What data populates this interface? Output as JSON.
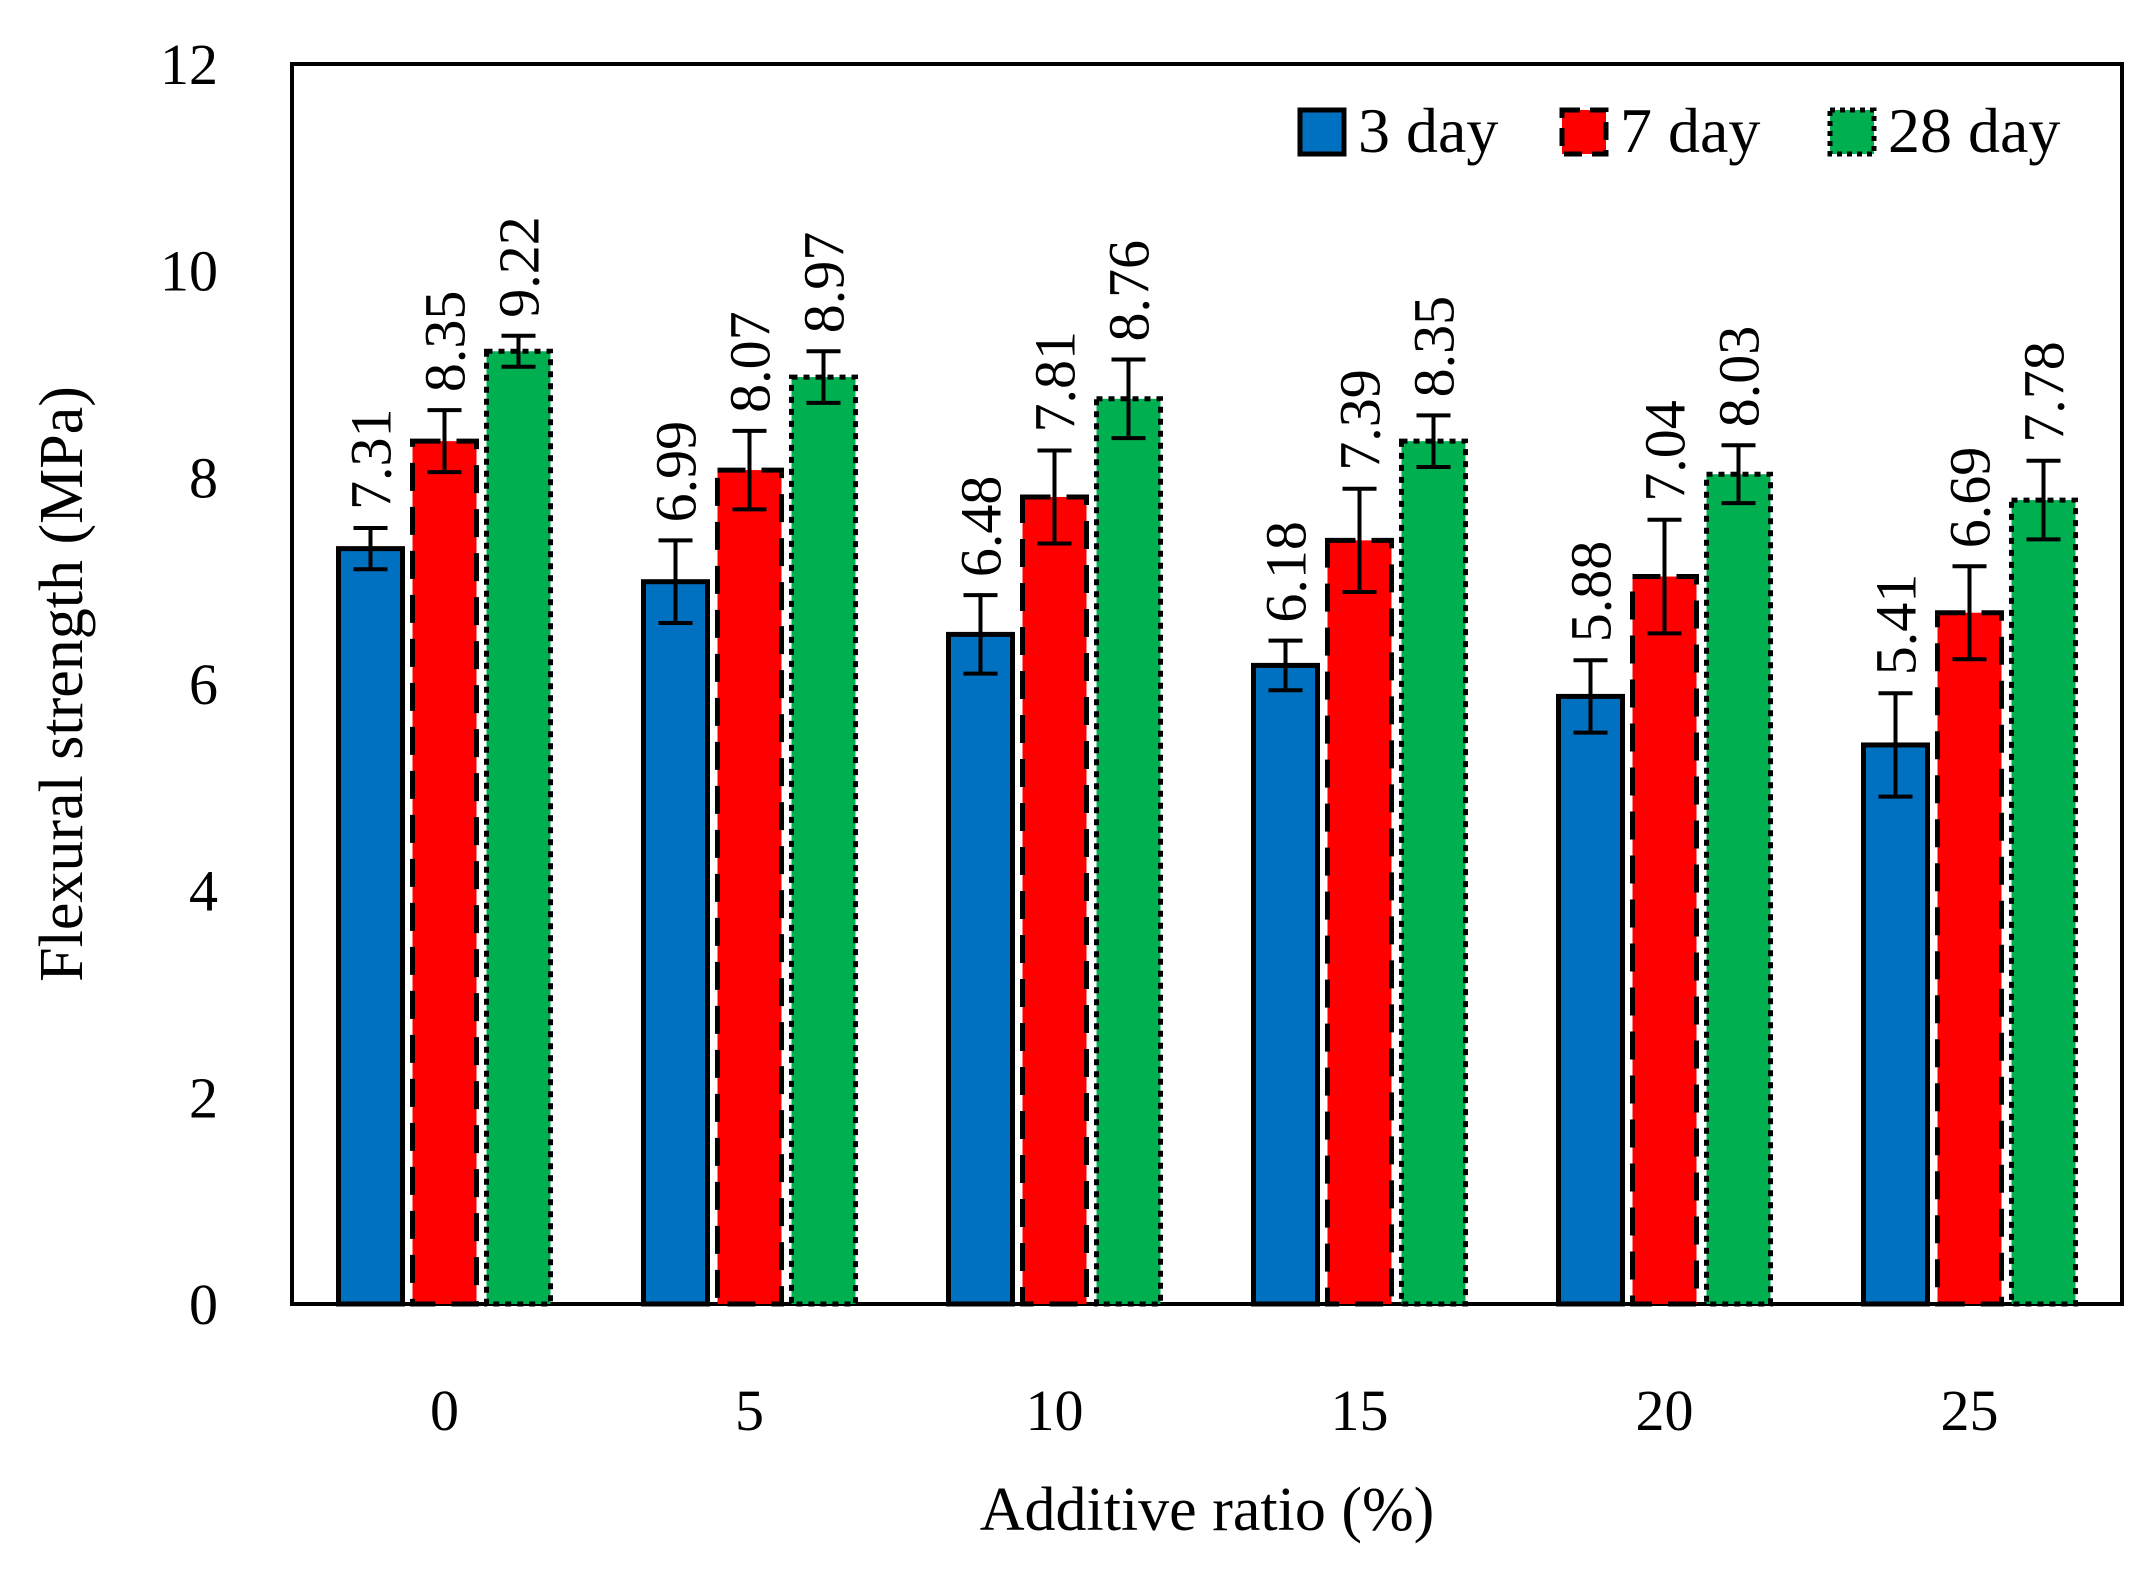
{
  "chart_data": {
    "type": "bar",
    "title": "",
    "xlabel": "Additive ratio (%)",
    "ylabel": "Flexural strength (MPa)",
    "categories": [
      "0",
      "5",
      "10",
      "15",
      "20",
      "25"
    ],
    "ylim": [
      0,
      12
    ],
    "yticks": [
      "0",
      "2",
      "4",
      "6",
      "8",
      "10",
      "12"
    ],
    "grid": false,
    "legend_position": "top-right",
    "series": [
      {
        "name": "3 day",
        "color": "#0070C0",
        "border": "solid",
        "values": [
          7.31,
          6.99,
          6.48,
          6.18,
          5.88,
          5.41
        ],
        "labels": [
          "7.31",
          "6.99",
          "6.48",
          "6.18",
          "5.88",
          "5.41"
        ],
        "errors": [
          0.2,
          0.4,
          0.38,
          0.24,
          0.35,
          0.5
        ]
      },
      {
        "name": "7 day",
        "color": "#FF0000",
        "border": "dashed",
        "values": [
          8.35,
          8.07,
          7.81,
          7.39,
          7.04,
          6.69
        ],
        "labels": [
          "8.35",
          "8.07",
          "7.81",
          "7.39",
          "7.04",
          "6.69"
        ],
        "errors": [
          0.3,
          0.38,
          0.45,
          0.5,
          0.55,
          0.45
        ]
      },
      {
        "name": "28 day",
        "color": "#00B050",
        "border": "dotted",
        "values": [
          9.22,
          8.97,
          8.76,
          8.35,
          8.03,
          7.78
        ],
        "labels": [
          "9.22",
          "8.97",
          "8.76",
          "8.35",
          "8.03",
          "7.78"
        ],
        "errors": [
          0.15,
          0.25,
          0.38,
          0.25,
          0.28,
          0.38
        ]
      }
    ]
  }
}
